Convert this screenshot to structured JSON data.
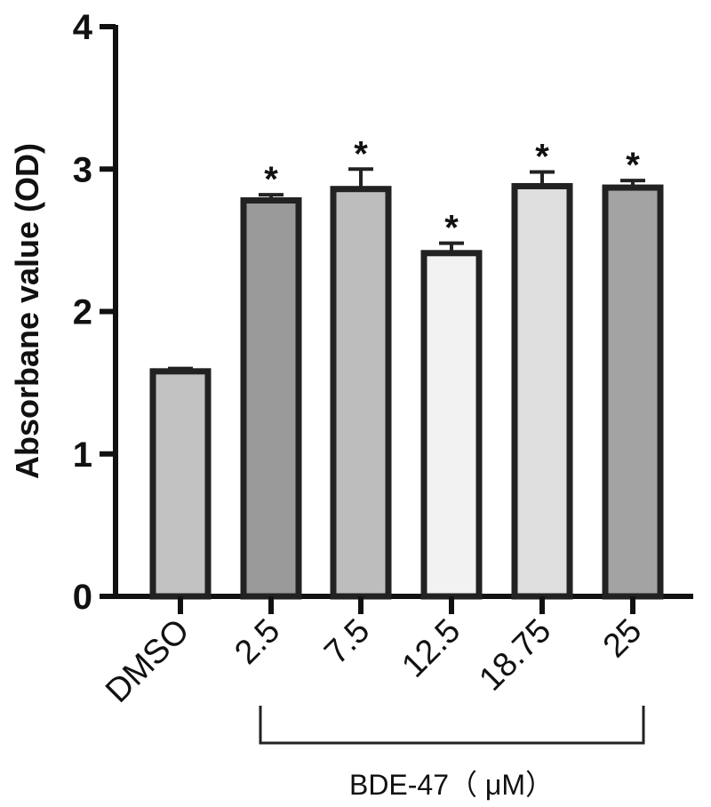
{
  "chart_data": {
    "type": "bar",
    "title": "",
    "categories": [
      "DMSO",
      "2.5",
      "7.5",
      "12.5",
      "18.75",
      "25"
    ],
    "values": [
      1.58,
      2.78,
      2.86,
      2.41,
      2.88,
      2.87
    ],
    "errors": [
      0.02,
      0.04,
      0.14,
      0.07,
      0.1,
      0.05
    ],
    "significance": [
      "",
      "*",
      "*",
      "*",
      "*",
      "*"
    ],
    "bar_colors": [
      "#c2c2c2",
      "#9a9a9a",
      "#bdbdbd",
      "#f2f2f2",
      "#dedede",
      "#a3a3a3"
    ],
    "ylabel": "Absorbane value (OD)",
    "ylim": [
      0,
      4
    ],
    "yticks": [
      "0",
      "1",
      "2",
      "3",
      "4"
    ],
    "group_label": "BDE-47（ μM）",
    "grid": false
  }
}
